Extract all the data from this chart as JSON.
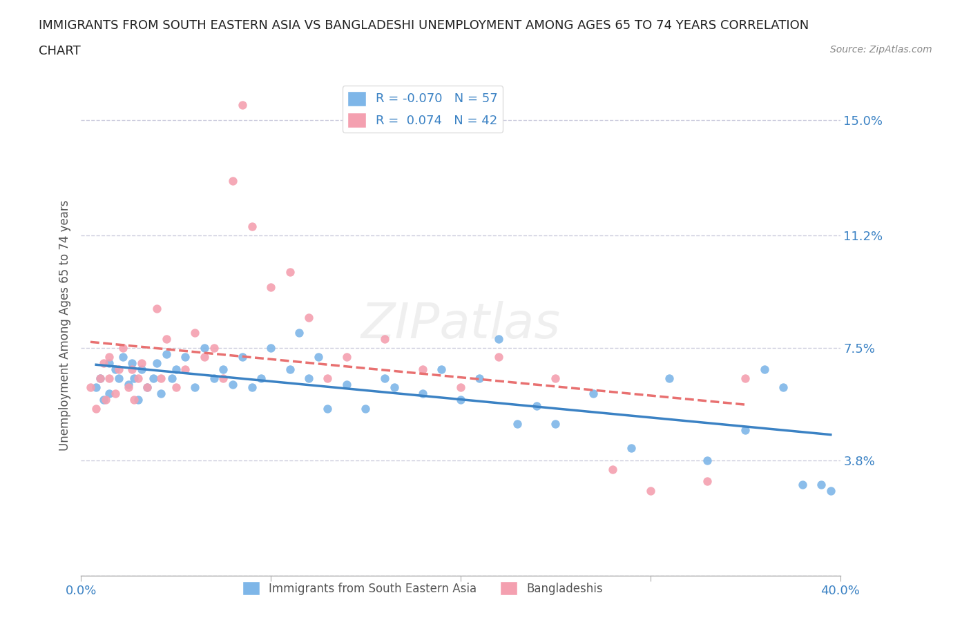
{
  "title_line1": "IMMIGRANTS FROM SOUTH EASTERN ASIA VS BANGLADESHI UNEMPLOYMENT AMONG AGES 65 TO 74 YEARS CORRELATION",
  "title_line2": "CHART",
  "source_text": "Source: ZipAtlas.com",
  "xlabel": "",
  "ylabel": "Unemployment Among Ages 65 to 74 years",
  "xlim": [
    0.0,
    0.4
  ],
  "ylim": [
    0.0,
    0.165
  ],
  "xtick_labels": [
    "0.0%",
    "40.0%"
  ],
  "ytick_values": [
    0.0,
    0.038,
    0.075,
    0.112,
    0.15
  ],
  "ytick_labels": [
    "",
    "3.8%",
    "7.5%",
    "11.2%",
    "15.0%"
  ],
  "r_blue": -0.07,
  "n_blue": 57,
  "r_pink": 0.074,
  "n_pink": 42,
  "blue_color": "#7EB6E8",
  "pink_color": "#F4A0B0",
  "line_blue_color": "#3B82C4",
  "line_pink_color": "#E87070",
  "grid_color": "#CCCCDD",
  "legend_text_color": "#3B82C4",
  "watermark": "ZIPatlas",
  "blue_scatter_x": [
    0.008,
    0.01,
    0.012,
    0.015,
    0.015,
    0.018,
    0.02,
    0.022,
    0.025,
    0.027,
    0.028,
    0.03,
    0.032,
    0.035,
    0.038,
    0.04,
    0.042,
    0.045,
    0.048,
    0.05,
    0.055,
    0.06,
    0.065,
    0.07,
    0.075,
    0.08,
    0.085,
    0.09,
    0.095,
    0.1,
    0.11,
    0.115,
    0.12,
    0.125,
    0.13,
    0.14,
    0.15,
    0.16,
    0.165,
    0.18,
    0.19,
    0.2,
    0.21,
    0.22,
    0.23,
    0.24,
    0.25,
    0.27,
    0.29,
    0.31,
    0.33,
    0.35,
    0.37,
    0.38,
    0.39,
    0.395,
    0.36
  ],
  "blue_scatter_y": [
    0.062,
    0.065,
    0.058,
    0.07,
    0.06,
    0.068,
    0.065,
    0.072,
    0.063,
    0.07,
    0.065,
    0.058,
    0.068,
    0.062,
    0.065,
    0.07,
    0.06,
    0.073,
    0.065,
    0.068,
    0.072,
    0.062,
    0.075,
    0.065,
    0.068,
    0.063,
    0.072,
    0.062,
    0.065,
    0.075,
    0.068,
    0.08,
    0.065,
    0.072,
    0.055,
    0.063,
    0.055,
    0.065,
    0.062,
    0.06,
    0.068,
    0.058,
    0.065,
    0.078,
    0.05,
    0.056,
    0.05,
    0.06,
    0.042,
    0.065,
    0.038,
    0.048,
    0.062,
    0.03,
    0.03,
    0.028,
    0.068
  ],
  "pink_scatter_x": [
    0.005,
    0.008,
    0.01,
    0.012,
    0.013,
    0.015,
    0.015,
    0.018,
    0.02,
    0.022,
    0.025,
    0.027,
    0.028,
    0.03,
    0.032,
    0.035,
    0.04,
    0.042,
    0.045,
    0.05,
    0.055,
    0.06,
    0.065,
    0.07,
    0.075,
    0.08,
    0.085,
    0.09,
    0.1,
    0.11,
    0.12,
    0.13,
    0.14,
    0.16,
    0.18,
    0.2,
    0.22,
    0.25,
    0.28,
    0.3,
    0.33,
    0.35
  ],
  "pink_scatter_y": [
    0.062,
    0.055,
    0.065,
    0.07,
    0.058,
    0.065,
    0.072,
    0.06,
    0.068,
    0.075,
    0.062,
    0.068,
    0.058,
    0.065,
    0.07,
    0.062,
    0.088,
    0.065,
    0.078,
    0.062,
    0.068,
    0.08,
    0.072,
    0.075,
    0.065,
    0.13,
    0.155,
    0.115,
    0.095,
    0.1,
    0.085,
    0.065,
    0.072,
    0.078,
    0.068,
    0.062,
    0.072,
    0.065,
    0.035,
    0.028,
    0.031,
    0.065
  ]
}
